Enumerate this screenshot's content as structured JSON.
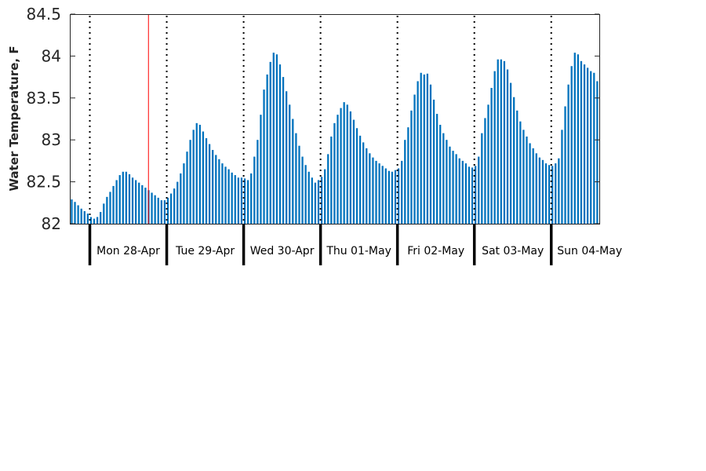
{
  "chart_data": {
    "type": "bar",
    "ylabel": "Water Temperature, F",
    "ylim": [
      82,
      84.5
    ],
    "yticks": [
      "82",
      "82.5",
      "83",
      "83.5",
      "84",
      "84.5"
    ],
    "grid": false,
    "day_labels": [
      "Mon 28-Apr",
      "Tue 29-Apr",
      "Wed 30-Apr",
      "Thu 01-May",
      "Fri 02-May",
      "Sat 03-May",
      "Sun 04-May"
    ],
    "day_boundaries_hours": [
      6,
      30,
      54,
      78,
      102,
      126,
      150
    ],
    "current_time_hour": 24,
    "interval_hours": 1,
    "values": [
      82.29,
      82.26,
      82.22,
      82.18,
      82.15,
      82.12,
      82.08,
      82.06,
      82.08,
      82.14,
      82.24,
      82.32,
      82.38,
      82.45,
      82.52,
      82.58,
      82.62,
      82.62,
      82.59,
      82.55,
      82.52,
      82.49,
      82.46,
      82.43,
      82.4,
      82.37,
      82.34,
      82.31,
      82.28,
      82.28,
      82.31,
      82.36,
      82.42,
      82.5,
      82.6,
      82.72,
      82.86,
      83.0,
      83.12,
      83.2,
      83.18,
      83.1,
      83.02,
      82.95,
      82.88,
      82.82,
      82.77,
      82.72,
      82.68,
      82.65,
      82.61,
      82.58,
      82.55,
      82.55,
      82.54,
      82.52,
      82.6,
      82.8,
      83.0,
      83.3,
      83.6,
      83.78,
      83.93,
      84.04,
      84.02,
      83.9,
      83.75,
      83.58,
      83.42,
      83.25,
      83.08,
      82.93,
      82.8,
      82.7,
      82.62,
      82.55,
      82.49,
      82.52,
      82.56,
      82.65,
      82.83,
      83.04,
      83.2,
      83.3,
      83.38,
      83.45,
      83.42,
      83.34,
      83.24,
      83.14,
      83.05,
      82.97,
      82.9,
      82.84,
      82.79,
      82.75,
      82.72,
      82.69,
      82.66,
      82.63,
      82.62,
      82.64,
      82.66,
      82.75,
      83.0,
      83.15,
      83.35,
      83.54,
      83.7,
      83.8,
      83.78,
      83.79,
      83.66,
      83.48,
      83.31,
      83.18,
      83.08,
      83.0,
      82.92,
      82.87,
      82.83,
      82.78,
      82.75,
      82.72,
      82.68,
      82.67,
      82.69,
      82.8,
      83.08,
      83.26,
      83.42,
      83.62,
      83.82,
      83.96,
      83.96,
      83.94,
      83.84,
      83.68,
      83.51,
      83.35,
      83.22,
      83.12,
      83.04,
      82.96,
      82.9,
      82.84,
      82.79,
      82.76,
      82.72,
      82.7,
      82.69,
      82.72,
      82.78,
      83.12,
      83.4,
      83.66,
      83.88,
      84.04,
      84.02,
      83.94,
      83.9,
      83.86,
      83.82,
      83.8,
      83.7
    ]
  }
}
